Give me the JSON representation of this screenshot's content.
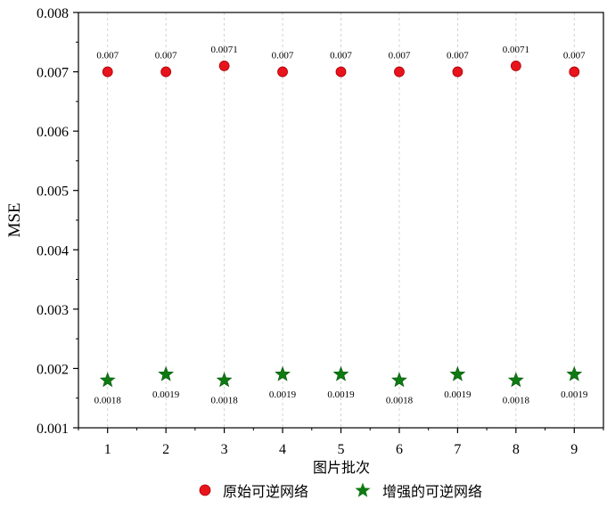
{
  "chart_data": {
    "type": "scatter",
    "xlabel": "图片批次",
    "ylabel": "MSE",
    "xlim": [
      0.5,
      9.5
    ],
    "ylim": [
      0.001,
      0.008
    ],
    "x": [
      1,
      2,
      3,
      4,
      5,
      6,
      7,
      8,
      9
    ],
    "x_tick_labels": [
      "1",
      "2",
      "3",
      "4",
      "5",
      "6",
      "7",
      "8",
      "9"
    ],
    "y_ticks": [
      0.001,
      0.002,
      0.003,
      0.004,
      0.005,
      0.006,
      0.007,
      0.008
    ],
    "y_tick_labels": [
      "0.001",
      "0.002",
      "0.003",
      "0.004",
      "0.005",
      "0.006",
      "0.007",
      "0.008"
    ],
    "grid": "vertical dashed lines at each x tick",
    "legend_position": "bottom-center",
    "series": [
      {
        "name": "原始可逆网络",
        "marker": "circle",
        "color": "#e8141c",
        "values": [
          0.007,
          0.007,
          0.0071,
          0.007,
          0.007,
          0.007,
          0.007,
          0.0071,
          0.007
        ],
        "data_labels": [
          "0.007",
          "0.007",
          "0.0071",
          "0.007",
          "0.007",
          "0.007",
          "0.007",
          "0.0071",
          "0.007"
        ],
        "label_position": "above"
      },
      {
        "name": "增强的可逆网络",
        "marker": "star",
        "color": "#0e7a12",
        "values": [
          0.0018,
          0.0019,
          0.0018,
          0.0019,
          0.0019,
          0.0018,
          0.0019,
          0.0018,
          0.0019
        ],
        "data_labels": [
          "0.0018",
          "0.0019",
          "0.0018",
          "0.0019",
          "0.0019",
          "0.0018",
          "0.0019",
          "0.0018",
          "0.0019"
        ],
        "label_position": "below"
      }
    ]
  }
}
